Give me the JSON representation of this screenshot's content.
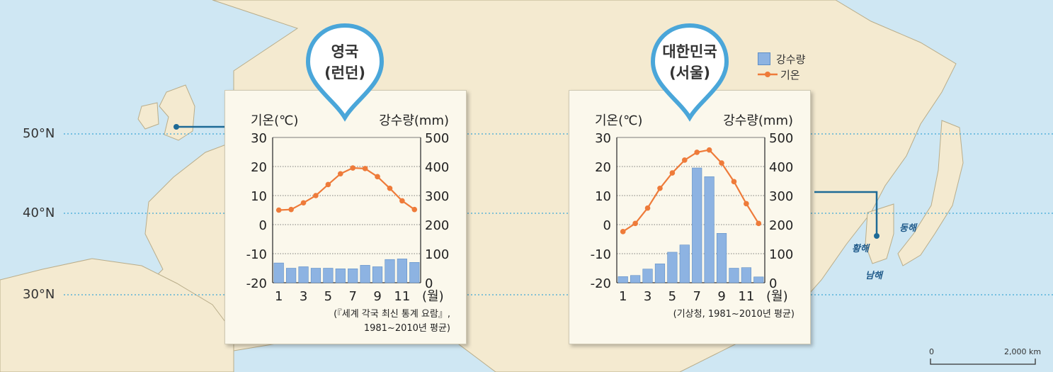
{
  "latitudes": [
    "50°N",
    "40°N",
    "30°N"
  ],
  "legend": {
    "precip": "강수량",
    "temp": "기온"
  },
  "seas": {
    "east": "동해",
    "yellow": "황해",
    "south": "남해"
  },
  "scale": {
    "zero": "0",
    "max": "2,000 km"
  },
  "colors": {
    "bar": "#8db3e2",
    "bar_stroke": "#5f8fc6",
    "line": "#ee7b3a",
    "pin": "#4aa6d9",
    "water": "#cfe7f3",
    "land": "#f4ead0"
  },
  "chart_data": [
    {
      "type": "bar+line",
      "place_line1": "영국",
      "place_line2": "(런던)",
      "y_left_label": "기온(℃)",
      "y_right_label": "강수량(mm)",
      "x_unit": "(월)",
      "x_ticks": [
        "1",
        "3",
        "5",
        "7",
        "9",
        "11"
      ],
      "y_left_ticks": [
        "30",
        "20",
        "10",
        "0",
        "-10",
        "-20"
      ],
      "y_right_ticks": [
        "500",
        "400",
        "300",
        "200",
        "100",
        "0"
      ],
      "y_left_range": [
        -20,
        30
      ],
      "y_right_range": [
        0,
        500
      ],
      "months": [
        1,
        2,
        3,
        4,
        5,
        6,
        7,
        8,
        9,
        10,
        11,
        12
      ],
      "precipitation": [
        68,
        50,
        55,
        50,
        50,
        48,
        48,
        60,
        55,
        80,
        82,
        70
      ],
      "temperature": [
        5,
        5.2,
        7.5,
        10,
        13.8,
        17.5,
        19.5,
        19.3,
        16.5,
        12.5,
        8.2,
        5.2
      ],
      "source_line1": "(『세계 각국 최신 통계 요람』,",
      "source_line2": "1981~2010년 평균)"
    },
    {
      "type": "bar+line",
      "place_line1": "대한민국",
      "place_line2": "(서울)",
      "y_left_label": "기온(℃)",
      "y_right_label": "강수량(mm)",
      "x_unit": "(월)",
      "x_ticks": [
        "1",
        "3",
        "5",
        "7",
        "9",
        "11"
      ],
      "y_left_ticks": [
        "30",
        "20",
        "10",
        "0",
        "-10",
        "-20"
      ],
      "y_right_ticks": [
        "500",
        "400",
        "300",
        "200",
        "100",
        "0"
      ],
      "y_left_range": [
        -20,
        30
      ],
      "y_right_range": [
        0,
        500
      ],
      "months": [
        1,
        2,
        3,
        4,
        5,
        6,
        7,
        8,
        9,
        10,
        11,
        12
      ],
      "precipitation": [
        21,
        25,
        47,
        65,
        105,
        130,
        395,
        365,
        170,
        50,
        52,
        20
      ],
      "temperature": [
        -2.4,
        0.4,
        5.7,
        12.5,
        17.8,
        22.2,
        24.9,
        25.7,
        21.2,
        14.8,
        7.2,
        0.4
      ],
      "source_line1": "(기상청, 1981~2010년 평균)",
      "source_line2": ""
    }
  ]
}
